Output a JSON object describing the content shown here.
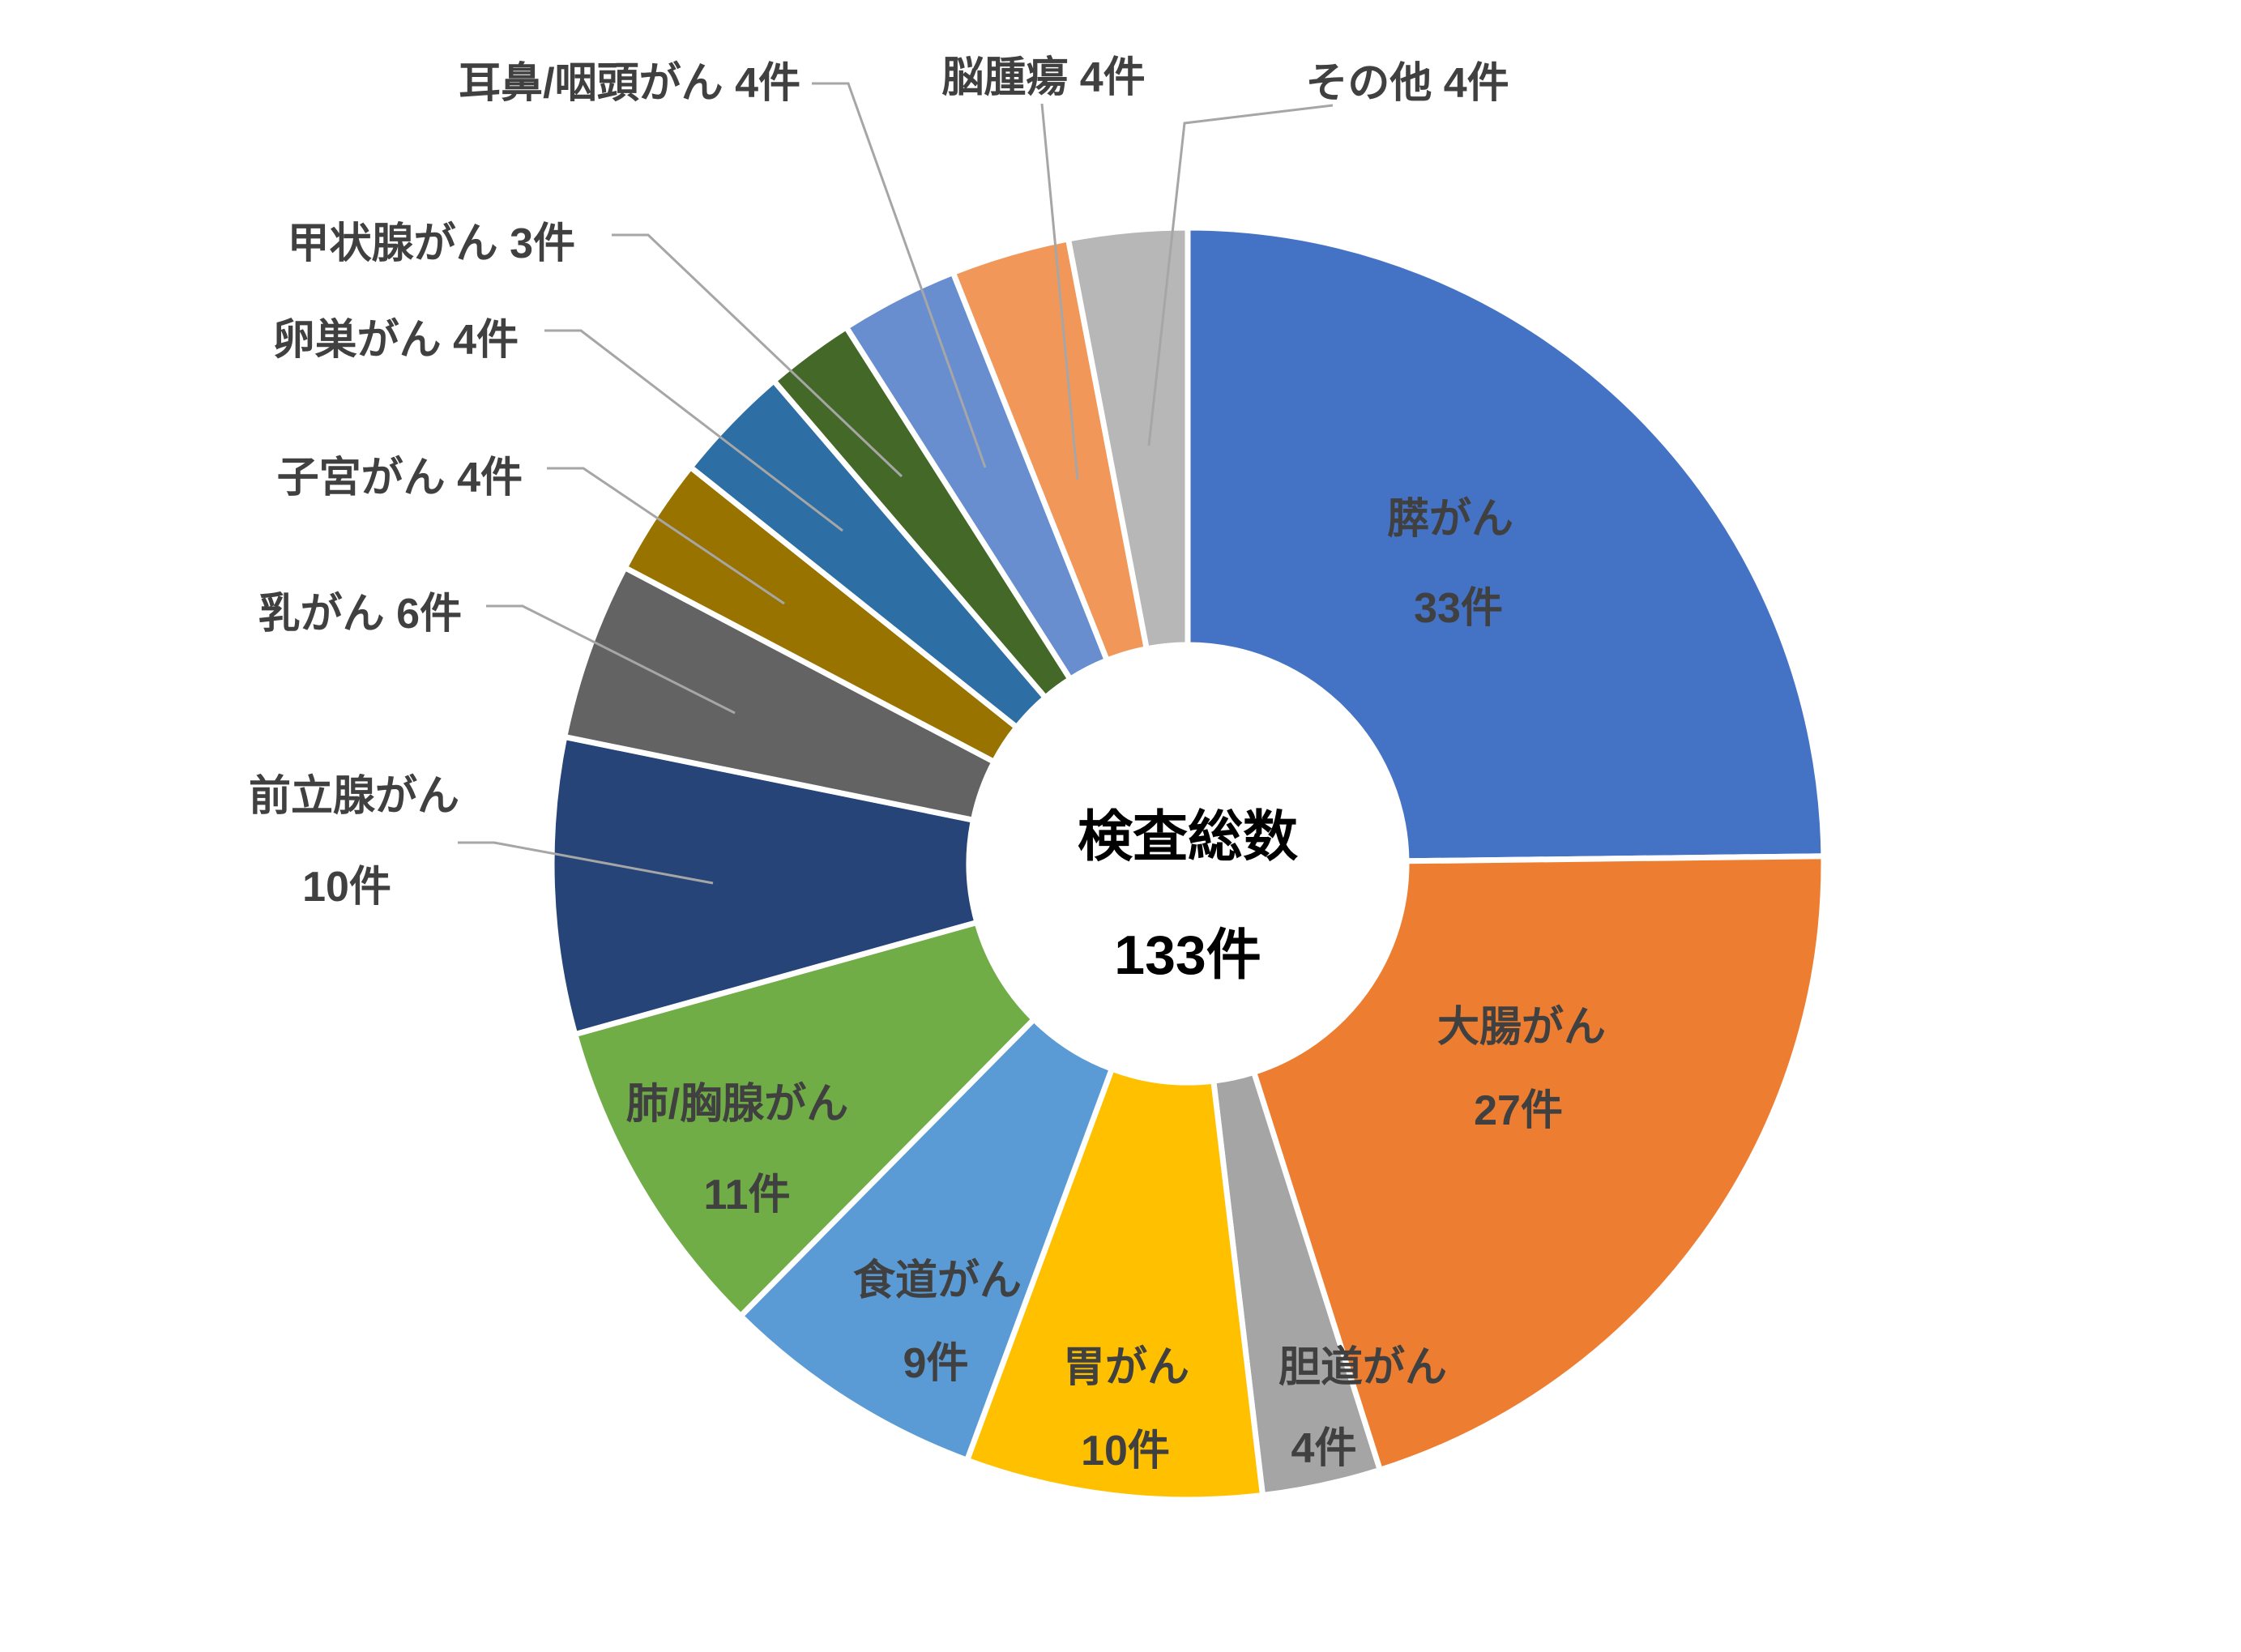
{
  "chart_data": {
    "type": "pie",
    "donut": true,
    "title": "",
    "center_label": {
      "line1": "検査総数",
      "line2": "133件"
    },
    "total_value": 133,
    "unit": "件",
    "categories": [
      "膵がん",
      "大腸がん",
      "胆道がん",
      "胃がん",
      "食道がん",
      "肺/胸腺がん",
      "前立腺がん",
      "乳がん",
      "子宮がん",
      "卵巣がん",
      "甲状腺がん",
      "耳鼻/咽頭がん",
      "脳腫瘍",
      "その他"
    ],
    "values": [
      33,
      27,
      4,
      10,
      9,
      11,
      10,
      6,
      4,
      4,
      3,
      4,
      4,
      4
    ],
    "colors": [
      "#4472C4",
      "#ED7D31",
      "#A5A5A5",
      "#FFC000",
      "#5B9BD5",
      "#70AD47",
      "#264478",
      "#636363",
      "#997300",
      "#2D6EA4",
      "#436828",
      "#698ED0",
      "#F1975A",
      "#B7B7B7"
    ],
    "slices": [
      {
        "id": "pancreatic",
        "label": "膵がん",
        "value": 33,
        "value_label": "33件",
        "display": "膵がん 33件",
        "color": "#4472C4",
        "label_placement": "inside"
      },
      {
        "id": "colorectal",
        "label": "大腸がん",
        "value": 27,
        "value_label": "27件",
        "display": "大腸がん 27件",
        "color": "#ED7D31",
        "label_placement": "inside"
      },
      {
        "id": "biliary",
        "label": "胆道がん",
        "value": 4,
        "value_label": "4件",
        "display": "胆道がん 4件",
        "color": "#A5A5A5",
        "label_placement": "inside"
      },
      {
        "id": "stomach",
        "label": "胃がん",
        "value": 10,
        "value_label": "10件",
        "display": "胃がん 10件",
        "color": "#FFC000",
        "label_placement": "inside"
      },
      {
        "id": "esophageal",
        "label": "食道がん",
        "value": 9,
        "value_label": "9件",
        "display": "食道がん 9件",
        "color": "#5B9BD5",
        "label_placement": "inside"
      },
      {
        "id": "lung-thymus",
        "label": "肺/胸腺がん",
        "value": 11,
        "value_label": "11件",
        "display": "肺/胸腺がん 11件",
        "color": "#70AD47",
        "label_placement": "inside"
      },
      {
        "id": "prostate",
        "label": "前立腺がん",
        "value": 10,
        "value_label": "10件",
        "display": "前立腺がん 10件",
        "color": "#264478",
        "label_placement": "outside"
      },
      {
        "id": "breast",
        "label": "乳がん",
        "value": 6,
        "value_label": "6件",
        "display": "乳がん 6件",
        "color": "#636363",
        "label_placement": "outside"
      },
      {
        "id": "uterine",
        "label": "子宮がん",
        "value": 4,
        "value_label": "4件",
        "display": "子宮がん 4件",
        "color": "#997300",
        "label_placement": "outside"
      },
      {
        "id": "ovarian",
        "label": "卵巣がん",
        "value": 4,
        "value_label": "4件",
        "display": "卵巣がん 4件",
        "color": "#2D6EA4",
        "label_placement": "outside"
      },
      {
        "id": "thyroid",
        "label": "甲状腺がん",
        "value": 3,
        "value_label": "3件",
        "display": "甲状腺がん 3件",
        "color": "#436828",
        "label_placement": "outside"
      },
      {
        "id": "ent",
        "label": "耳鼻/咽頭がん",
        "value": 4,
        "value_label": "4件",
        "display": "耳鼻/咽頭がん 4件",
        "color": "#698ED0",
        "label_placement": "outside"
      },
      {
        "id": "brain",
        "label": "脳腫瘍",
        "value": 4,
        "value_label": "4件",
        "display": "脳腫瘍 4件",
        "color": "#F1975A",
        "label_placement": "outside"
      },
      {
        "id": "other",
        "label": "その他",
        "value": 4,
        "value_label": "4件",
        "display": "その他 4件",
        "color": "#B7B7B7",
        "label_placement": "outside"
      }
    ],
    "styles": {
      "label_color": "#404040",
      "center_color": "#000000",
      "leader_color": "#A6A6A6",
      "slice_border": "#FFFFFF",
      "background": "#FFFFFF"
    },
    "legend": "none",
    "start_angle_deg": 0,
    "direction": "clockwise"
  }
}
